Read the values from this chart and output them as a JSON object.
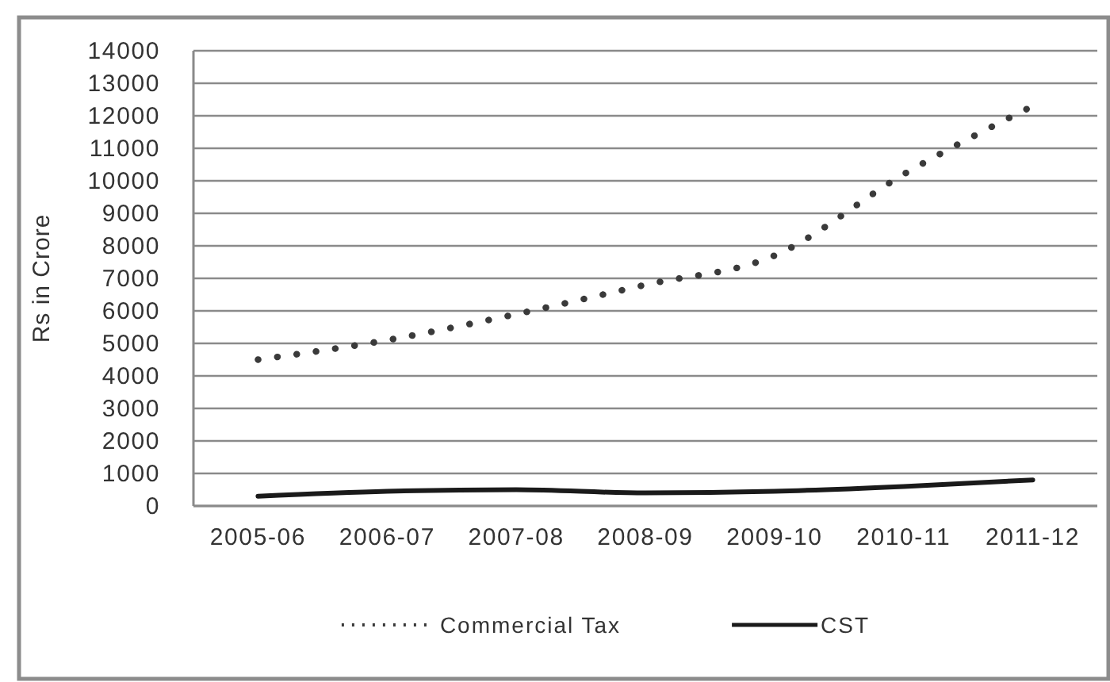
{
  "chart_data": {
    "type": "line",
    "ylabel": "Rs in Crore",
    "categories": [
      "2005-06",
      "2006-07",
      "2007-08",
      "2008-09",
      "2009-10",
      "2010-11",
      "2011-12"
    ],
    "ylim": [
      0,
      14000
    ],
    "yticks": [
      0,
      1000,
      2000,
      3000,
      4000,
      5000,
      6000,
      7000,
      8000,
      9000,
      10000,
      11000,
      12000,
      13000,
      14000
    ],
    "grid": "y",
    "legend": "bottom",
    "marker": "none",
    "series": [
      {
        "name": "Commercial Tax",
        "color": "#3a3a3a",
        "line_style": "dotted",
        "values": [
          4500,
          5100,
          5900,
          6800,
          7700,
          10200,
          12300
        ]
      },
      {
        "name": "CST",
        "color": "#1a1a1a",
        "line_style": "solid",
        "values": [
          300,
          450,
          500,
          400,
          450,
          600,
          800
        ]
      }
    ]
  }
}
